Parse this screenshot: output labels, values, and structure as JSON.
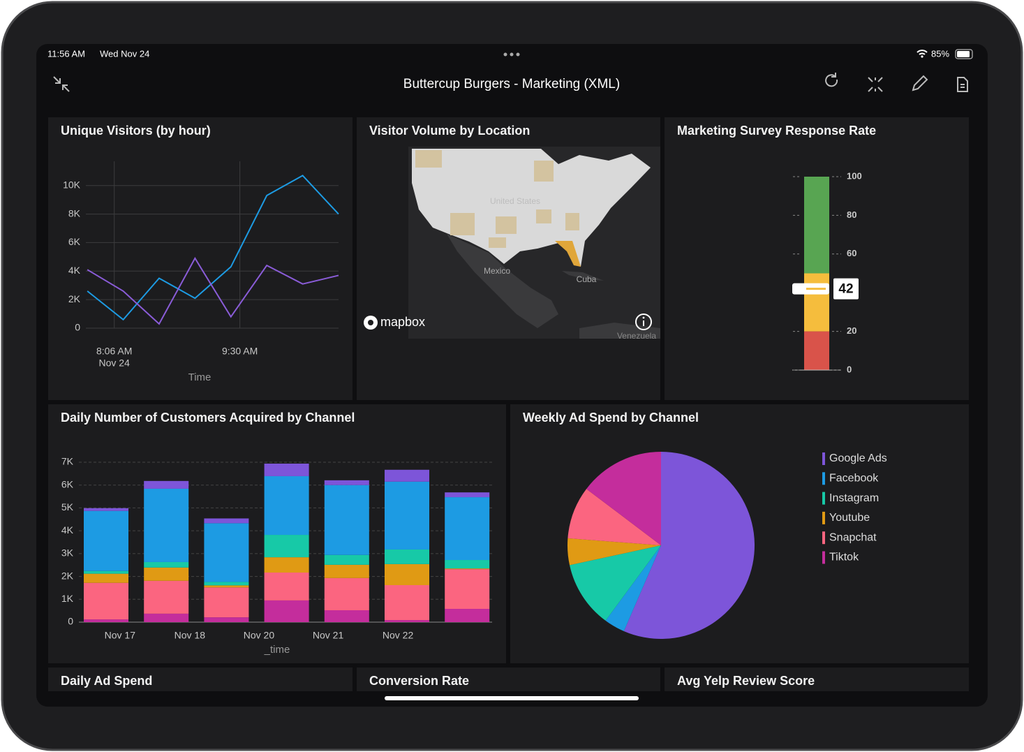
{
  "status_bar": {
    "time": "11:56 AM",
    "date": "Wed Nov 24",
    "battery": "85%"
  },
  "header": {
    "title": "Buttercup Burgers - Marketing (XML)"
  },
  "panels": [
    {
      "title": "Unique Visitors (by hour)",
      "chart": {
        "type": "line",
        "x": [
          "07:48",
          "08:12",
          "08:36",
          "09:00",
          "09:24",
          "09:48",
          "10:12",
          "10:36"
        ],
        "series": [
          {
            "color": "#1d9be3",
            "values": [
              2600,
              600,
              3500,
              2100,
              4300,
              9300,
              10700,
              8000
            ]
          },
          {
            "color": "#8a5cd8",
            "values": [
              4100,
              2600,
              300,
              4900,
              800,
              4400,
              3100,
              3700
            ]
          }
        ],
        "xlim": [
          "07:47",
          "10:36"
        ],
        "xticks": [
          {
            "value": "08:06",
            "label": "8:06 AM",
            "sublabel": "Nov 24"
          },
          {
            "value": "09:30",
            "label": "9:30 AM"
          }
        ],
        "ylim": [
          0,
          11700
        ],
        "yticks": [
          0,
          {
            "value": 2000,
            "label": "2K"
          },
          {
            "value": 4000,
            "label": "4K"
          },
          {
            "value": 6000,
            "label": "6K"
          },
          {
            "value": 8000,
            "label": "8K"
          },
          {
            "value": 10000,
            "label": "10K"
          }
        ],
        "x_label": "Time",
        "grid": true
      }
    },
    {
      "title": "Visitor Volume by Location",
      "map": {
        "labels": [
          "United States",
          "Mexico",
          "Cuba",
          "Venezuela"
        ],
        "attribution": "mapbox"
      }
    },
    {
      "title": "Marketing Survey Response Rate",
      "chart": {
        "type": "gauge",
        "value": 42,
        "ylim": [
          0,
          100
        ],
        "yticks": [
          0,
          20,
          60,
          80,
          100
        ],
        "bands": [
          {
            "from": 0,
            "to": 20,
            "color": "#d9534a"
          },
          {
            "from": 20,
            "to": 50,
            "color": "#f5bd3d"
          },
          {
            "from": 50,
            "to": 100,
            "color": "#58a552"
          }
        ]
      }
    },
    {
      "title": "Daily Number of Customers Acquired by Channel",
      "chart": {
        "type": "stacked_bar",
        "categories": [
          null,
          null,
          null,
          null,
          null,
          null,
          null
        ],
        "series": [
          {
            "color": "#c42d9c",
            "values": [
              120,
              370,
              210,
              950,
              520,
              90,
              580
            ]
          },
          {
            "color": "#fb6580",
            "values": [
              1600,
              1440,
              1310,
              1220,
              1410,
              1530,
              1740
            ]
          },
          {
            "color": "#e09a14",
            "values": [
              400,
              580,
              90,
              670,
              580,
              920,
              30
            ]
          },
          {
            "color": "#17c9a7",
            "values": [
              120,
              240,
              150,
              980,
              430,
              640,
              370
            ]
          },
          {
            "color": "#1d9be3",
            "values": [
              2630,
              3210,
              2570,
              2570,
              3060,
              2970,
              2750
            ]
          },
          {
            "color": "#7d55d9",
            "values": [
              120,
              340,
              210,
              550,
              210,
              520,
              210
            ]
          }
        ],
        "xticks": [
          {
            "value": 0.23,
            "label": "Nov 17"
          },
          {
            "value": 1.39,
            "label": "Nov 18"
          },
          {
            "value": 2.54,
            "label": "Nov 20"
          },
          {
            "value": 3.69,
            "label": "Nov 21"
          },
          {
            "value": 4.85,
            "label": "Nov 22"
          }
        ],
        "ylim": [
          0,
          7000
        ],
        "yticks": [
          0,
          {
            "value": 1000,
            "label": "1K"
          },
          {
            "value": 2000,
            "label": "2K"
          },
          {
            "value": 3000,
            "label": "3K"
          },
          {
            "value": 4000,
            "label": "4K"
          },
          {
            "value": 5000,
            "label": "5K"
          },
          {
            "value": 6000,
            "label": "6K"
          },
          {
            "value": 7000,
            "label": "7K"
          }
        ],
        "x_label": "_time",
        "grid": true
      }
    },
    {
      "title": "Weekly Ad Spend by Channel",
      "chart": {
        "type": "pie",
        "categories": [
          "Google Ads",
          "Facebook",
          "Instagram",
          "Youtube",
          "Snapchat",
          "Tiktok"
        ],
        "values": [
          56.5,
          3.6,
          11.5,
          4.6,
          9.1,
          14.7
        ],
        "colors": [
          "#7d55d9",
          "#1d9be3",
          "#17c9a7",
          "#e09a14",
          "#fb6580",
          "#c42d9c"
        ],
        "legend": "right"
      }
    },
    {
      "title": "Daily Ad Spend"
    },
    {
      "title": "Conversion Rate"
    },
    {
      "title": "Avg Yelp Review Score"
    }
  ]
}
